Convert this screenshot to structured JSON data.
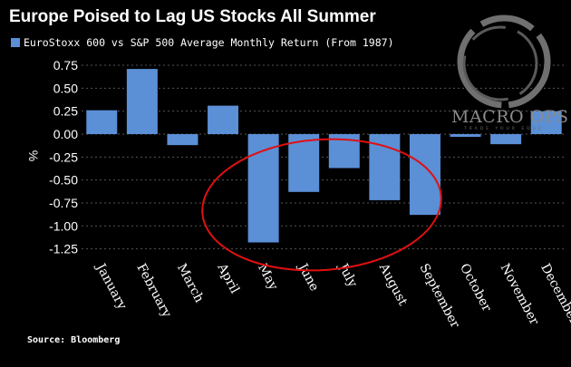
{
  "chart_data": {
    "type": "bar",
    "title": "Europe Poised to Lag US Stocks All Summer",
    "series": [
      {
        "name": "EuroStoxx 600 vs S&P 500 Average Monthly Return (From 1987)",
        "color": "#5b8fd6",
        "values": [
          0.26,
          0.71,
          -0.12,
          0.31,
          -1.18,
          -0.63,
          -0.37,
          -0.72,
          -0.88,
          -0.03,
          -0.11,
          0.25
        ]
      }
    ],
    "categories": [
      "January",
      "February",
      "March",
      "April",
      "May",
      "June",
      "July",
      "August",
      "September",
      "October",
      "November",
      "December"
    ],
    "yticks": [
      0.75,
      0.5,
      0.25,
      0.0,
      -0.25,
      -0.5,
      -0.75,
      -1.0,
      -1.25
    ],
    "ytick_labels": [
      "0.75",
      "0.50",
      "0.25",
      "0.00",
      "-0.25",
      "-0.50",
      "-0.75",
      "-1.00",
      "-1.25"
    ],
    "ylabel": "%",
    "xlabel": "",
    "ylim": [
      -1.3,
      0.85
    ],
    "grid": "horizontal dashed",
    "annotation": "red ellipse around May-September"
  },
  "source": "Source: Bloomberg",
  "watermark": {
    "text": "MACRO OPS",
    "tagline": "TRADE YOUR EDGE"
  },
  "colors": {
    "background": "#000000",
    "bar": "#5b8fd6",
    "highlight": "#e01010",
    "text": "#ffffff"
  }
}
